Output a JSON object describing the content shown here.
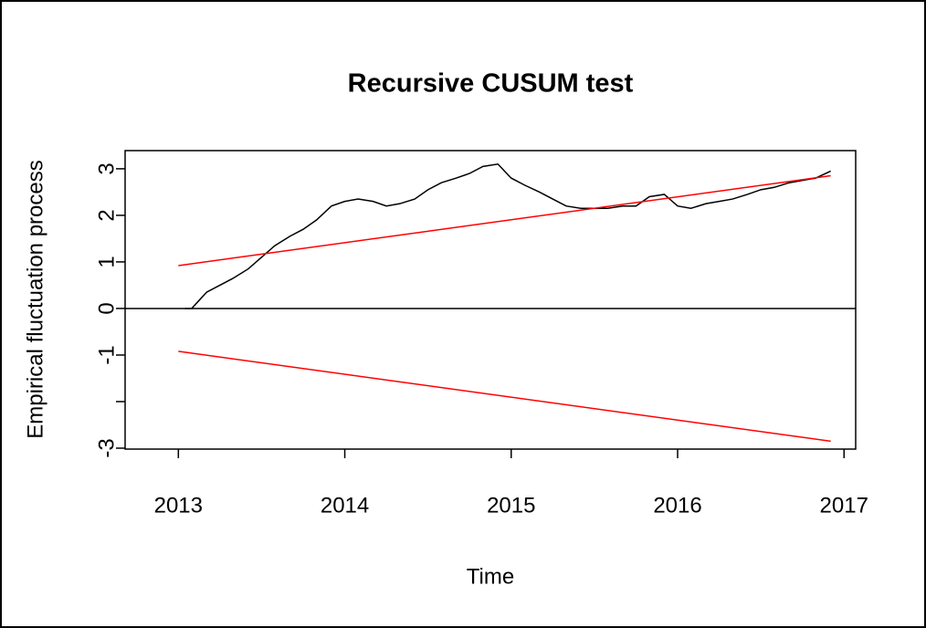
{
  "chart_data": {
    "type": "line",
    "title": "Recursive CUSUM test",
    "xlabel": "Time",
    "ylabel": "Empirical fluctuation process",
    "xlim": [
      2012.68,
      2017.07
    ],
    "ylim": [
      -3.02,
      3.39
    ],
    "xticks": [
      2013,
      2014,
      2015,
      2016,
      2017
    ],
    "yticks": [
      -3,
      {
        "value": -2,
        "label": null
      },
      -1,
      0,
      1,
      2,
      3
    ],
    "hlines": [
      0
    ],
    "series": [
      {
        "color": "#000000",
        "x": [
          2013.04,
          2013.08,
          2013.17,
          2013.25,
          2013.33,
          2013.42,
          2013.5,
          2013.58,
          2013.67,
          2013.75,
          2013.83,
          2013.92,
          2014.0,
          2014.08,
          2014.17,
          2014.25,
          2014.33,
          2014.42,
          2014.5,
          2014.58,
          2014.67,
          2014.75,
          2014.83,
          2014.92,
          2015.0,
          2015.08,
          2015.17,
          2015.25,
          2015.33,
          2015.42,
          2015.5,
          2015.58,
          2015.67,
          2015.75,
          2015.83,
          2015.92,
          2016.0,
          2016.08,
          2016.17,
          2016.25,
          2016.33,
          2016.42,
          2016.5,
          2016.58,
          2016.67,
          2016.75,
          2016.83,
          2016.92
        ],
        "values": [
          0,
          0,
          0.35,
          0.5,
          0.65,
          0.85,
          1.1,
          1.35,
          1.55,
          1.7,
          1.9,
          2.2,
          2.3,
          2.35,
          2.3,
          2.2,
          2.25,
          2.35,
          2.55,
          2.7,
          2.8,
          2.9,
          3.05,
          3.1,
          2.8,
          2.65,
          2.5,
          2.35,
          2.2,
          2.15,
          2.15,
          2.15,
          2.2,
          2.2,
          2.4,
          2.45,
          2.2,
          2.15,
          2.25,
          2.3,
          2.35,
          2.45,
          2.55,
          2.6,
          2.7,
          2.75,
          2.8,
          2.95
        ]
      },
      {
        "color": "#ff0000",
        "x": [
          2013,
          2016.92
        ],
        "values": [
          0.92,
          2.85
        ]
      },
      {
        "color": "#ff0000",
        "x": [
          2013,
          2016.92
        ],
        "values": [
          -0.92,
          -2.85
        ]
      }
    ]
  }
}
